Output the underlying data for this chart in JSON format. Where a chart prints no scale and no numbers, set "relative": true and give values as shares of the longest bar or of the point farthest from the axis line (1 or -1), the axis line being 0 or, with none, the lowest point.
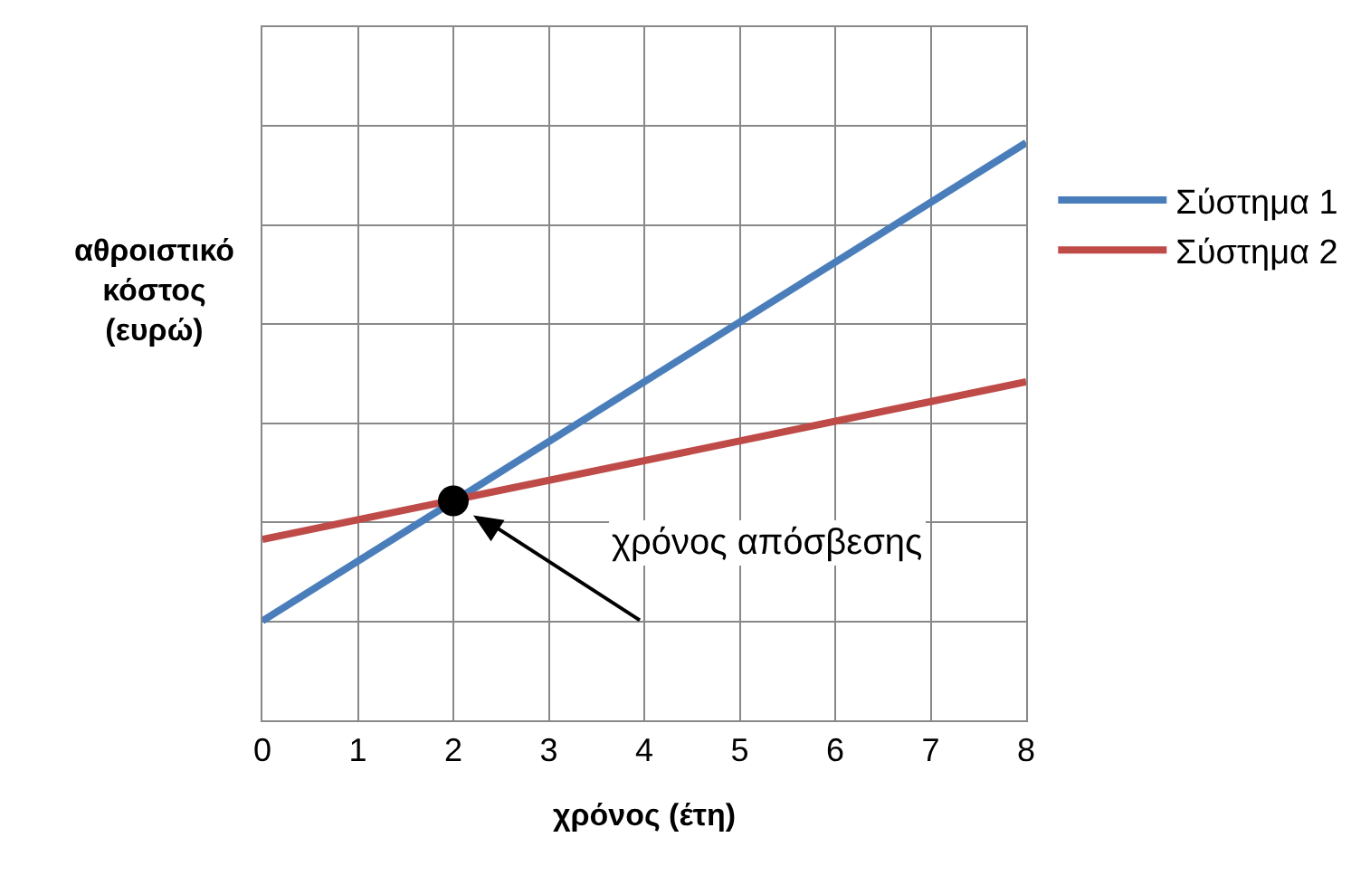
{
  "chart_data": {
    "type": "line",
    "relative": true,
    "xlabel": "χρόνος (έτη)",
    "ylabel": "αθροιστικό κόστος (ευρώ)",
    "xlim": [
      0,
      8
    ],
    "xticks": [
      0,
      1,
      2,
      3,
      4,
      5,
      6,
      7,
      8
    ],
    "grid": true,
    "legend": "right",
    "line_style": "solid",
    "series": [
      {
        "name": "Σύστημα 1",
        "color": "#4a7ebb",
        "x": [
          0,
          8
        ],
        "values": [
          0.172,
          1
        ]
      },
      {
        "name": "Σύστημα 2",
        "color": "#be4b48",
        "x": [
          0,
          8
        ],
        "values": [
          0.313,
          0.586
        ]
      },
      {
        "type": "scatter",
        "marker": "circle",
        "color": "#000000",
        "x": [
          2
        ],
        "values": [
          0.38
        ]
      }
    ],
    "annotations": [
      "χρόνος απόσβεσης"
    ]
  }
}
